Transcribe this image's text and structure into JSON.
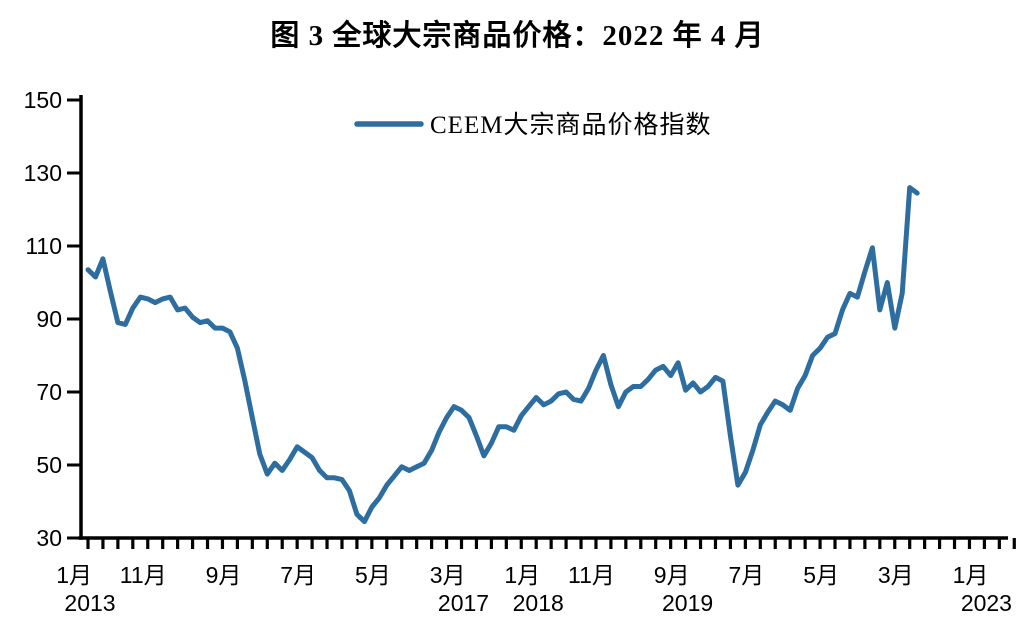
{
  "figure": {
    "title": "图 3 全球大宗商品价格：2022 年 4 月"
  },
  "chart_data": {
    "type": "line",
    "title": "图 3 全球大宗商品价格：2022 年 4 月",
    "grid": false,
    "legend_position": "top-center",
    "axis_color": "#000000",
    "series": [
      {
        "name": "CEEM大宗商品价格指数",
        "color": "#2E6DA0",
        "start_month": "2013-01",
        "end_month": "2022-04",
        "values": [
          103.5,
          101.5,
          106.5,
          97.5,
          89,
          88.5,
          93,
          96,
          95.5,
          94.5,
          95.5,
          96,
          92.5,
          93,
          90.5,
          89,
          89.5,
          87.5,
          87.5,
          86.5,
          82,
          73,
          63,
          53,
          47.5,
          50.5,
          48.5,
          51.5,
          55,
          53.5,
          52,
          48.5,
          46.5,
          46.5,
          46,
          43,
          36.5,
          34.5,
          38.5,
          41,
          44.5,
          47,
          49.5,
          48.5,
          49.5,
          50.5,
          54,
          59,
          63,
          66,
          65,
          63,
          58,
          52.5,
          56,
          60.5,
          60.5,
          59.5,
          63.5,
          66,
          68.5,
          66.5,
          67.5,
          69.5,
          70,
          68,
          67.5,
          71,
          76,
          80,
          72,
          66,
          70,
          71.5,
          71.5,
          73.5,
          76,
          77,
          74.5,
          78,
          70.5,
          72.5,
          70,
          71.5,
          74,
          73,
          58,
          44.5,
          48,
          54,
          61,
          64.5,
          67.5,
          66.5,
          65,
          71,
          74.5,
          80,
          82,
          85,
          86,
          92.5,
          97,
          96,
          103,
          109.5,
          92.5,
          100,
          87.5,
          97,
          126,
          124.5
        ]
      }
    ],
    "x_axis": {
      "unit": "month",
      "range_months": [
        0,
        124
      ],
      "minor_tick_every_months": 2,
      "labels": [
        {
          "m": 0,
          "month": "1月",
          "year": "2013"
        },
        {
          "m": 10,
          "month": "11月",
          "year": ""
        },
        {
          "m": 20,
          "month": "9月",
          "year": ""
        },
        {
          "m": 30,
          "month": "7月",
          "year": ""
        },
        {
          "m": 40,
          "month": "5月",
          "year": ""
        },
        {
          "m": 50,
          "month": "3月",
          "year": "2017"
        },
        {
          "m": 60,
          "month": "1月",
          "year": "2018"
        },
        {
          "m": 70,
          "month": "11月",
          "year": ""
        },
        {
          "m": 80,
          "month": "9月",
          "year": "2019"
        },
        {
          "m": 90,
          "month": "7月",
          "year": ""
        },
        {
          "m": 100,
          "month": "5月",
          "year": ""
        },
        {
          "m": 110,
          "month": "3月",
          "year": ""
        },
        {
          "m": 120,
          "month": "1月",
          "year": "2023"
        }
      ]
    },
    "y_axis": {
      "min": 30,
      "max": 150,
      "ticks": [
        30,
        50,
        70,
        90,
        110,
        130,
        150
      ]
    }
  }
}
